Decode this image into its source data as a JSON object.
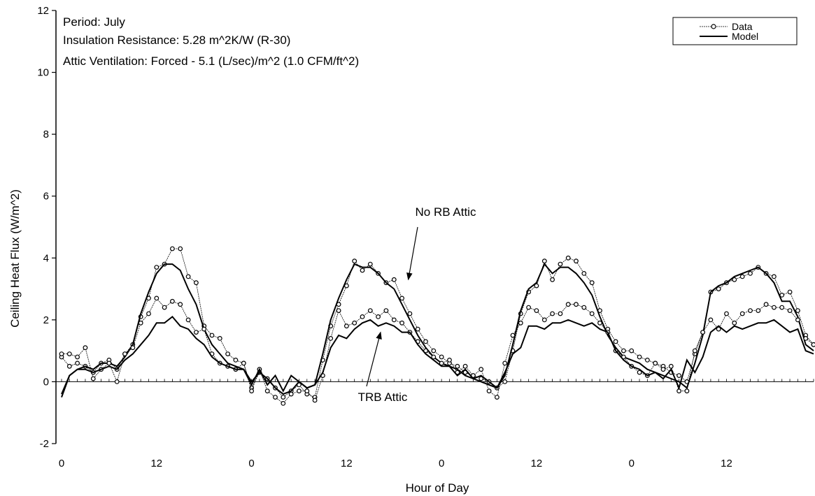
{
  "chart_data": {
    "type": "line",
    "title": "",
    "xlabel": "Hour of Day",
    "ylabel": "Ceiling Heat Flux (W/m^2)",
    "xlim": [
      0,
      95
    ],
    "ylim": [
      -2,
      12
    ],
    "x_ticks": [
      {
        "hour": 0,
        "label": "0"
      },
      {
        "hour": 12,
        "label": "12"
      },
      {
        "hour": 24,
        "label": "0"
      },
      {
        "hour": 36,
        "label": "12"
      },
      {
        "hour": 48,
        "label": "0"
      },
      {
        "hour": 60,
        "label": "12"
      },
      {
        "hour": 72,
        "label": "0"
      },
      {
        "hour": 84,
        "label": "12"
      }
    ],
    "y_ticks": [
      -2,
      0,
      2,
      4,
      6,
      8,
      10,
      12
    ],
    "info_lines": [
      "Period: July",
      "Insulation Resistance: 5.28 m^2K/W (R-30)",
      "Attic Ventilation: Forced - 5.1 (L/sec)/m^2 (1.0 CFM/ft^2)"
    ],
    "legend": {
      "position": "top-right",
      "data_label": "Data",
      "model_label": "Model"
    },
    "annotations": [
      {
        "text": "No RB Attic",
        "hour": 42.5,
        "value": 5.5,
        "arrow_to": [
          43.8,
          3.3
        ]
      },
      {
        "text": "TRB Attic",
        "hour": 41,
        "value": -0.5,
        "arrow_to": [
          40.3,
          1.6
        ]
      }
    ],
    "series": [
      {
        "attic": "No RB Attic",
        "kind": "data",
        "values": [
          0.8,
          0.5,
          0.6,
          0.5,
          0.3,
          0.6,
          0.7,
          0.4,
          0.9,
          1.2,
          2.1,
          2.7,
          3.7,
          3.8,
          4.3,
          4.3,
          3.4,
          3.2,
          1.8,
          1.5,
          1.4,
          0.9,
          0.7,
          0.6,
          -0.2,
          0.3,
          0.1,
          -0.2,
          -0.5,
          -0.3,
          -0.1,
          -0.4,
          -0.5,
          0.7,
          1.8,
          2.5,
          3.1,
          3.9,
          3.6,
          3.8,
          3.5,
          3.2,
          3.3,
          2.7,
          2.2,
          1.7,
          1.3,
          1.0,
          0.8,
          0.6,
          0.5,
          0.3,
          0.2,
          0.1,
          0.0,
          -0.2,
          0.0,
          1.0,
          2.2,
          2.9,
          3.1,
          3.9,
          3.3,
          3.8,
          4.0,
          3.9,
          3.5,
          3.2,
          2.3,
          1.7,
          1.3,
          1.0,
          1.0,
          0.8,
          0.7,
          0.6,
          0.5,
          0.3,
          0.2,
          0.0,
          0.9,
          1.6,
          2.9,
          3.0,
          3.2,
          3.3,
          3.4,
          3.5,
          3.7,
          3.5,
          3.4,
          2.8,
          2.9,
          2.3,
          1.5,
          1.2
        ],
        "color": "#000000"
      },
      {
        "attic": "No RB Attic",
        "kind": "model",
        "values": [
          -0.5,
          0.2,
          0.4,
          0.5,
          0.4,
          0.6,
          0.6,
          0.5,
          0.8,
          1.2,
          2.2,
          2.9,
          3.5,
          3.8,
          3.8,
          3.6,
          3.0,
          2.5,
          1.7,
          1.2,
          0.9,
          0.6,
          0.5,
          0.4,
          0.0,
          0.3,
          0.1,
          -0.2,
          -0.4,
          -0.3,
          0.0,
          -0.2,
          -0.1,
          0.9,
          2.0,
          2.7,
          3.3,
          3.8,
          3.7,
          3.7,
          3.5,
          3.2,
          3.0,
          2.5,
          2.0,
          1.5,
          1.1,
          0.8,
          0.6,
          0.5,
          0.4,
          0.2,
          0.1,
          0.0,
          -0.1,
          -0.2,
          0.2,
          1.2,
          2.3,
          3.0,
          3.2,
          3.8,
          3.5,
          3.7,
          3.7,
          3.5,
          3.2,
          2.8,
          2.1,
          1.5,
          1.1,
          0.8,
          0.7,
          0.6,
          0.4,
          0.3,
          0.2,
          0.1,
          0.0,
          -0.2,
          0.6,
          1.5,
          2.9,
          3.1,
          3.2,
          3.4,
          3.5,
          3.6,
          3.7,
          3.5,
          3.2,
          2.6,
          2.6,
          2.1,
          1.2,
          1.0
        ],
        "color": "#000000"
      },
      {
        "attic": "TRB Attic",
        "kind": "data",
        "values": [
          0.9,
          0.9,
          0.8,
          1.1,
          0.1,
          0.4,
          0.6,
          0.0,
          0.9,
          1.1,
          1.9,
          2.2,
          2.7,
          2.4,
          2.6,
          2.5,
          2.0,
          1.6,
          1.7,
          0.9,
          0.6,
          0.5,
          0.4,
          0.6,
          -0.3,
          0.4,
          -0.3,
          -0.5,
          -0.7,
          -0.4,
          -0.3,
          -0.3,
          -0.6,
          0.2,
          1.4,
          2.3,
          1.8,
          1.9,
          2.1,
          2.3,
          2.1,
          2.3,
          2.0,
          1.9,
          1.6,
          1.3,
          1.0,
          0.8,
          0.6,
          0.7,
          0.3,
          0.5,
          0.2,
          0.4,
          -0.3,
          -0.5,
          0.6,
          1.5,
          1.9,
          2.4,
          2.3,
          2.0,
          2.2,
          2.2,
          2.5,
          2.5,
          2.4,
          2.2,
          1.9,
          1.6,
          1.0,
          0.8,
          0.5,
          0.3,
          0.2,
          0.6,
          0.4,
          0.5,
          -0.3,
          -0.3,
          1.0,
          1.6,
          2.0,
          1.7,
          2.2,
          1.9,
          2.2,
          2.3,
          2.3,
          2.5,
          2.4,
          2.4,
          2.3,
          2.0,
          1.4,
          1.2
        ],
        "color": "#000000"
      },
      {
        "attic": "TRB Attic",
        "kind": "model",
        "values": [
          -0.4,
          0.2,
          0.4,
          0.4,
          0.3,
          0.4,
          0.5,
          0.4,
          0.7,
          0.9,
          1.2,
          1.5,
          1.9,
          1.9,
          2.1,
          1.8,
          1.7,
          1.4,
          1.2,
          0.8,
          0.6,
          0.5,
          0.4,
          0.4,
          -0.1,
          0.4,
          -0.1,
          0.2,
          -0.3,
          0.2,
          0.0,
          -0.2,
          -0.1,
          0.3,
          1.1,
          1.5,
          1.4,
          1.7,
          1.9,
          2.0,
          1.8,
          1.9,
          1.8,
          1.6,
          1.6,
          1.2,
          0.9,
          0.7,
          0.5,
          0.5,
          0.2,
          0.4,
          0.1,
          0.2,
          0.0,
          -0.2,
          0.3,
          0.9,
          1.1,
          1.8,
          1.8,
          1.7,
          1.9,
          1.9,
          2.0,
          1.9,
          1.8,
          1.9,
          1.7,
          1.6,
          1.0,
          0.7,
          0.5,
          0.4,
          0.2,
          0.3,
          0.1,
          0.4,
          -0.2,
          0.7,
          0.3,
          0.8,
          1.6,
          1.8,
          1.6,
          1.8,
          1.7,
          1.8,
          1.9,
          1.9,
          2.0,
          1.8,
          1.6,
          1.7,
          1.0,
          0.9
        ],
        "color": "#000000"
      }
    ]
  }
}
